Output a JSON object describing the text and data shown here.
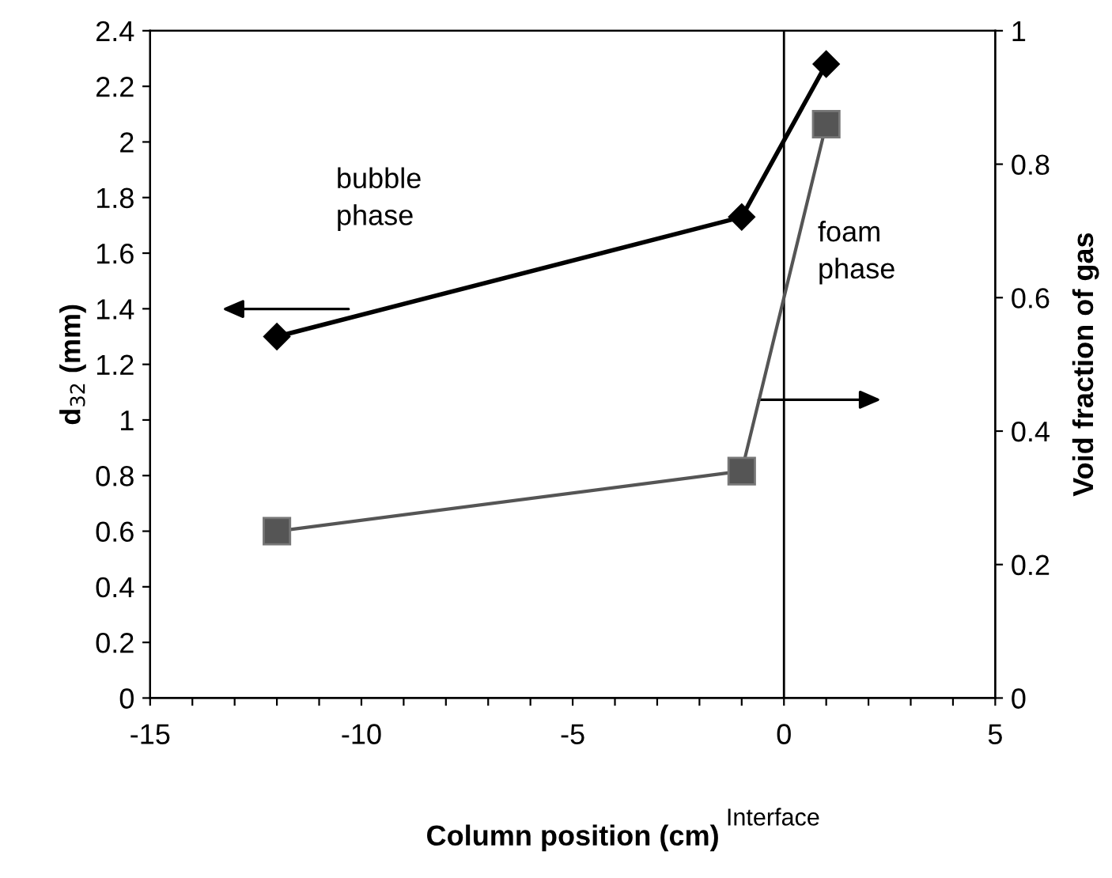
{
  "chart_data": {
    "type": "line",
    "xlabel": "Column position (cm)",
    "ylabel": "d$_{32}$ (mm)",
    "y2label": "Void fraction of gas",
    "xlim": [
      -15,
      5
    ],
    "xticks": [
      -15,
      {
        "value": -14,
        "label": null
      },
      {
        "value": -13,
        "label": null
      },
      {
        "value": -12,
        "label": null
      },
      {
        "value": -11,
        "label": null
      },
      -10,
      {
        "value": -9,
        "label": null
      },
      {
        "value": -8,
        "label": null
      },
      {
        "value": -7,
        "label": null
      },
      {
        "value": -6,
        "label": null
      },
      -5,
      {
        "value": -4,
        "label": null
      },
      {
        "value": -3,
        "label": null
      },
      {
        "value": -2,
        "label": null
      },
      {
        "value": -1,
        "label": null
      },
      0,
      {
        "value": 1,
        "label": null
      },
      {
        "value": 2,
        "label": null
      },
      {
        "value": 3,
        "label": null
      },
      {
        "value": 4,
        "label": null
      },
      5
    ],
    "ylim": [
      0,
      2.4
    ],
    "yticks": [
      0,
      0.2,
      0.4,
      0.6,
      0.8,
      1,
      1.2,
      1.4,
      1.6,
      1.8,
      2,
      2.2,
      2.4
    ],
    "y2lim": [
      0,
      1
    ],
    "y2ticks": [
      0,
      0.2,
      0.4,
      0.6,
      0.8,
      1
    ],
    "grid": false,
    "legend": false,
    "line_style": "solid",
    "series": [
      {
        "color": "#000000",
        "marker": "diamond",
        "x": [
          -12,
          -1,
          1
        ],
        "values": [
          1.3,
          1.73,
          2.28
        ]
      },
      {
        "color": "#555555",
        "marker": "square",
        "axis": "y2",
        "x": [
          -12,
          -1,
          1
        ],
        "values": [
          0.25,
          0.34,
          0.86
        ]
      }
    ],
    "ref_lines": [
      {
        "axis": "x",
        "value": 0,
        "label": "Interface",
        "color": "#000000"
      }
    ],
    "annotations": [
      "bubble\nphase",
      "foam\nphase"
    ]
  }
}
